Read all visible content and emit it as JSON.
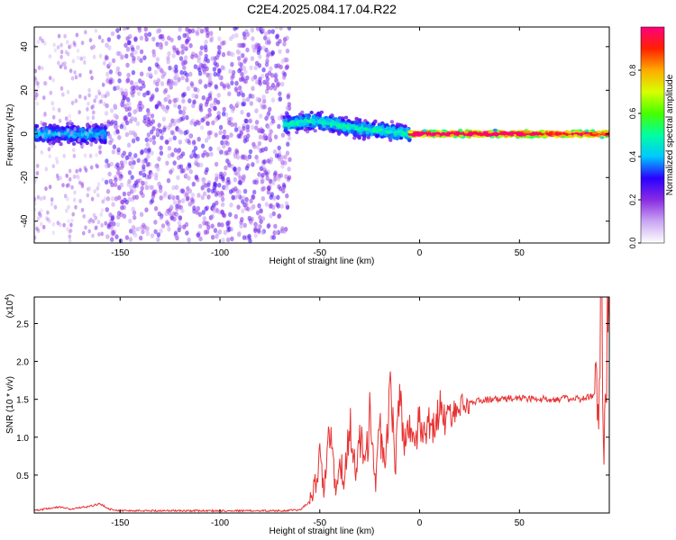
{
  "title": "C2E4.2025.084.17.04.R22",
  "chart_data": [
    {
      "type": "heatmap",
      "xlabel": "Height of straight line (km)",
      "ylabel": "Frequency (Hz)",
      "xlim": [
        -193,
        95
      ],
      "ylim": [
        -50,
        49
      ],
      "xticks": [
        -150,
        -100,
        -50,
        0,
        50
      ],
      "yticks": [
        -40,
        -20,
        0,
        20,
        40
      ],
      "colorbar": {
        "label": "Normalized spectral amplitude",
        "range": [
          0,
          1
        ],
        "ticks": [
          0.0,
          0.2,
          0.4,
          0.6,
          0.8
        ],
        "colors": [
          "#ffffff",
          "#c9a6f2",
          "#8a2be2",
          "#2a00ff",
          "#00c8ff",
          "#00ffa0",
          "#46ff00",
          "#d8ff00",
          "#ffaa00",
          "#ff2000",
          "#ff0080"
        ]
      },
      "regions": [
        {
          "x_range": [
            -193,
            -157
          ],
          "freq_center": 0,
          "freq_halfwidth": 6,
          "amplitude": 0.3,
          "density": "dense band"
        },
        {
          "x_range": [
            -193,
            -157
          ],
          "freq_center": 0,
          "freq_halfwidth": 49,
          "amplitude": 0.12,
          "density": "sparse scatter"
        },
        {
          "x_range": [
            -157,
            -65
          ],
          "freq_center": 0,
          "freq_halfwidth": 49,
          "amplitude": 0.18,
          "density": "dense scatter"
        },
        {
          "x_range": [
            -68,
            -5
          ],
          "freq_center_profile": [
            [
              -68,
              4
            ],
            [
              -55,
              6
            ],
            [
              -45,
              5
            ],
            [
              -35,
              3
            ],
            [
              -25,
              2
            ],
            [
              -15,
              1
            ],
            [
              -5,
              0
            ]
          ],
          "freq_halfwidth": 5,
          "amplitude": 0.35,
          "density": "band"
        },
        {
          "x_range": [
            -5,
            95
          ],
          "freq_center": 0,
          "freq_halfwidth": 2,
          "amplitude": 0.75,
          "density": "narrow line"
        }
      ]
    },
    {
      "type": "line",
      "xlabel": "Height of straight line (km)",
      "ylabel": "SNR (10 * v/v)",
      "y_multiplier": "(x10",
      "y_multiplier_exp": "4",
      "xlim": [
        -193,
        95
      ],
      "ylim": [
        0,
        2.85
      ],
      "xticks": [
        -150,
        -100,
        -50,
        0,
        50
      ],
      "yticks": [
        0.5,
        1.0,
        1.5,
        2.0,
        2.5
      ],
      "ytick_labels": [
        "0.5",
        "1.0",
        "1.5",
        "2.0",
        "2.5"
      ],
      "series": [
        {
          "color": "#e83232",
          "x": [
            -193,
            -185,
            -180,
            -175,
            -170,
            -165,
            -160,
            -155,
            -150,
            -130,
            -110,
            -90,
            -70,
            -60,
            -55,
            -52,
            -50,
            -48,
            -45,
            -42,
            -40,
            -38,
            -35,
            -32,
            -30,
            -27,
            -25,
            -22,
            -20,
            -17,
            -15,
            -12,
            -10,
            -7,
            -5,
            -2,
            0,
            3,
            5,
            8,
            10,
            13,
            15,
            18,
            20,
            25,
            30,
            35,
            40,
            50,
            60,
            70,
            80,
            88,
            90,
            91,
            92,
            93,
            94,
            95
          ],
          "y": [
            0.03,
            0.06,
            0.08,
            0.05,
            0.07,
            0.09,
            0.12,
            0.05,
            0.03,
            0.03,
            0.03,
            0.03,
            0.03,
            0.04,
            0.15,
            0.4,
            0.7,
            0.3,
            1.1,
            0.25,
            0.8,
            0.35,
            1.2,
            0.5,
            1.1,
            0.6,
            1.3,
            0.4,
            1.15,
            0.55,
            1.6,
            0.7,
            1.4,
            0.8,
            1.2,
            0.9,
            1.25,
            1.05,
            1.2,
            1.1,
            1.45,
            1.2,
            1.3,
            1.35,
            1.4,
            1.45,
            1.48,
            1.5,
            1.5,
            1.52,
            1.5,
            1.51,
            1.5,
            1.55,
            1.3,
            2.85,
            0.7,
            1.8,
            2.2,
            2.5
          ]
        }
      ]
    }
  ]
}
